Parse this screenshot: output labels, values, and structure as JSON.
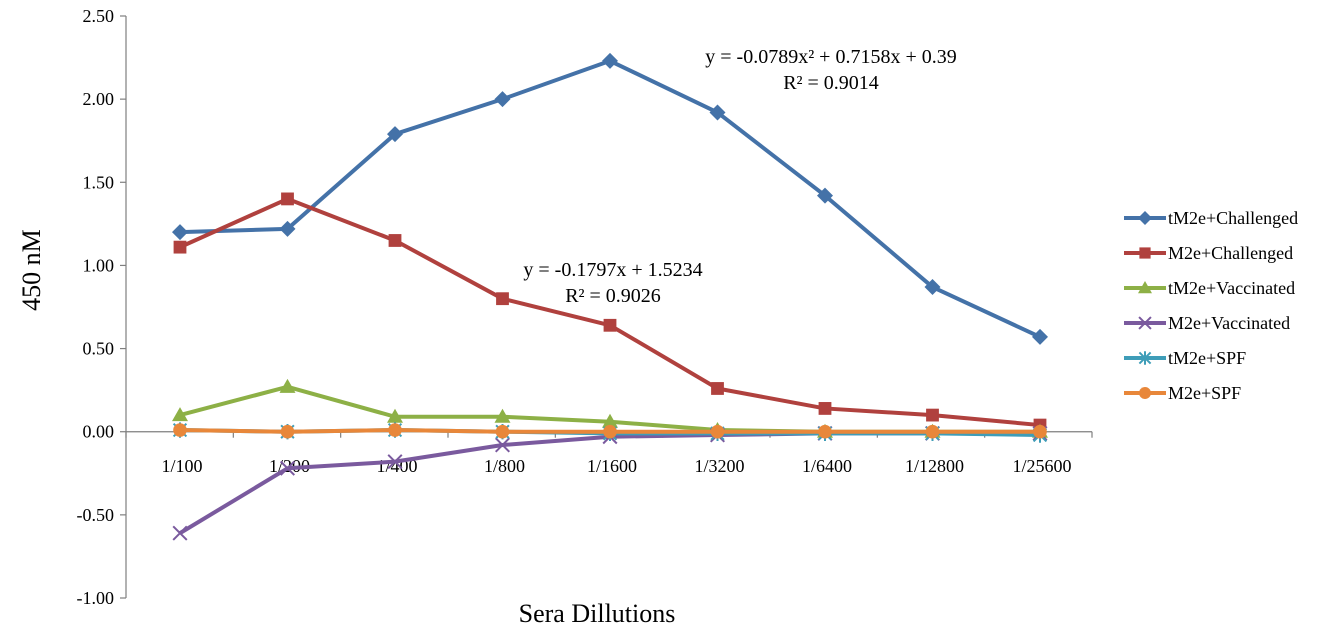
{
  "chart_data": {
    "type": "line",
    "title": "",
    "xlabel": "Sera Dillutions",
    "ylabel": "450 nM",
    "categories": [
      "1/100",
      "1/200",
      "1/400",
      "1/800",
      "1/1600",
      "1/3200",
      "1/6400",
      "1/12800",
      "1/25600"
    ],
    "ylim": [
      -1.0,
      2.5
    ],
    "yticks": [
      "2.50",
      "2.00",
      "1.50",
      "1.00",
      "0.50",
      "0.00",
      "-0.50",
      "-1.00"
    ],
    "grid": false,
    "legend_position": "right",
    "series": [
      {
        "name": "tM2e+Challenged",
        "color": "#4472A8",
        "marker": "diamond",
        "values": [
          1.2,
          1.22,
          1.79,
          2.0,
          2.23,
          1.92,
          1.42,
          0.87,
          0.57
        ]
      },
      {
        "name": "M2e+Challenged",
        "color": "#B0413E",
        "marker": "square",
        "values": [
          1.11,
          1.4,
          1.15,
          0.8,
          0.64,
          0.26,
          0.14,
          0.1,
          0.04
        ]
      },
      {
        "name": "tM2e+Vaccinated",
        "color": "#8DB046",
        "marker": "triangle",
        "values": [
          0.1,
          0.27,
          0.09,
          0.09,
          0.06,
          0.01,
          0.0,
          0.0,
          0.0
        ]
      },
      {
        "name": "M2e+Vaccinated",
        "color": "#7A5A9E",
        "marker": "x",
        "values": [
          -0.61,
          -0.22,
          -0.18,
          -0.08,
          -0.03,
          -0.02,
          -0.01,
          -0.01,
          -0.01
        ]
      },
      {
        "name": "tM2e+SPF",
        "color": "#3E9DB8",
        "marker": "asterisk",
        "values": [
          0.01,
          0.0,
          0.01,
          0.0,
          -0.01,
          -0.01,
          -0.01,
          -0.01,
          -0.02
        ]
      },
      {
        "name": "M2e+SPF",
        "color": "#E8873A",
        "marker": "circle",
        "values": [
          0.01,
          0.0,
          0.01,
          0.0,
          0.0,
          0.0,
          0.0,
          0.0,
          0.0
        ]
      }
    ],
    "annotations": [
      {
        "line1": "y = -0.0789x² + 0.7158x + 0.39",
        "line2": "R² = 0.9014",
        "series": "tM2e+Challenged"
      },
      {
        "line1": "y = -0.1797x + 1.5234",
        "line2": "R² = 0.9026",
        "series": "M2e+Challenged"
      }
    ]
  }
}
